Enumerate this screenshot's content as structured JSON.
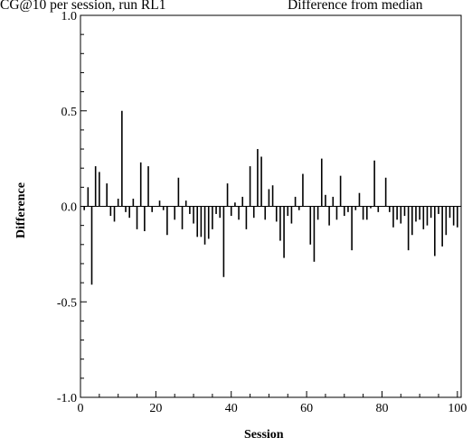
{
  "chart_data": {
    "type": "bar",
    "title_left": "CG@10 per session, run RL1",
    "title_right": "Difference from median",
    "xlabel": "Session",
    "ylabel": "Difference",
    "xlim": [
      0,
      101
    ],
    "ylim": [
      -1.0,
      1.0
    ],
    "xticks": [
      "0",
      "20",
      "40",
      "60",
      "80",
      "100"
    ],
    "yticks": [
      "1.0",
      "0.5",
      "0.0",
      "-0.5",
      "-1.0"
    ],
    "x": [
      1,
      2,
      3,
      4,
      5,
      6,
      7,
      8,
      9,
      10,
      11,
      12,
      13,
      14,
      15,
      16,
      17,
      18,
      19,
      20,
      21,
      22,
      23,
      24,
      25,
      26,
      27,
      28,
      29,
      30,
      31,
      32,
      33,
      34,
      35,
      36,
      37,
      38,
      39,
      40,
      41,
      42,
      43,
      44,
      45,
      46,
      47,
      48,
      49,
      50,
      51,
      52,
      53,
      54,
      55,
      56,
      57,
      58,
      59,
      60,
      61,
      62,
      63,
      64,
      65,
      66,
      67,
      68,
      69,
      70,
      71,
      72,
      73,
      74,
      75,
      76,
      77,
      78,
      79,
      80,
      81,
      82,
      83,
      84,
      85,
      86,
      87,
      88,
      89,
      90,
      91,
      92,
      93,
      94,
      95,
      96,
      97,
      98,
      99,
      100
    ],
    "values": [
      -0.02,
      0.1,
      -0.41,
      0.21,
      0.18,
      0.0,
      0.12,
      -0.05,
      -0.08,
      0.04,
      0.5,
      -0.03,
      -0.06,
      0.04,
      -0.12,
      0.23,
      -0.13,
      0.21,
      -0.03,
      0.0,
      0.03,
      -0.02,
      -0.15,
      0.0,
      -0.07,
      0.15,
      -0.12,
      0.03,
      -0.04,
      -0.09,
      -0.16,
      -0.16,
      -0.2,
      -0.17,
      -0.12,
      -0.04,
      -0.06,
      -0.37,
      0.12,
      -0.05,
      0.02,
      -0.07,
      0.05,
      -0.12,
      0.21,
      -0.06,
      0.3,
      0.26,
      -0.07,
      0.09,
      0.11,
      -0.08,
      -0.18,
      -0.27,
      -0.05,
      -0.09,
      0.05,
      -0.02,
      0.17,
      0.0,
      -0.2,
      -0.29,
      -0.07,
      0.25,
      0.06,
      -0.1,
      0.05,
      -0.07,
      0.16,
      -0.05,
      -0.03,
      -0.23,
      -0.02,
      0.07,
      -0.07,
      -0.07,
      -0.01,
      0.24,
      -0.03,
      0.0,
      0.15,
      -0.03,
      -0.11,
      -0.07,
      -0.09,
      -0.05,
      -0.23,
      -0.15,
      -0.08,
      -0.07,
      -0.12,
      -0.1,
      -0.06,
      -0.26,
      -0.04,
      -0.21,
      -0.15,
      -0.06,
      -0.1,
      -0.11
    ]
  }
}
